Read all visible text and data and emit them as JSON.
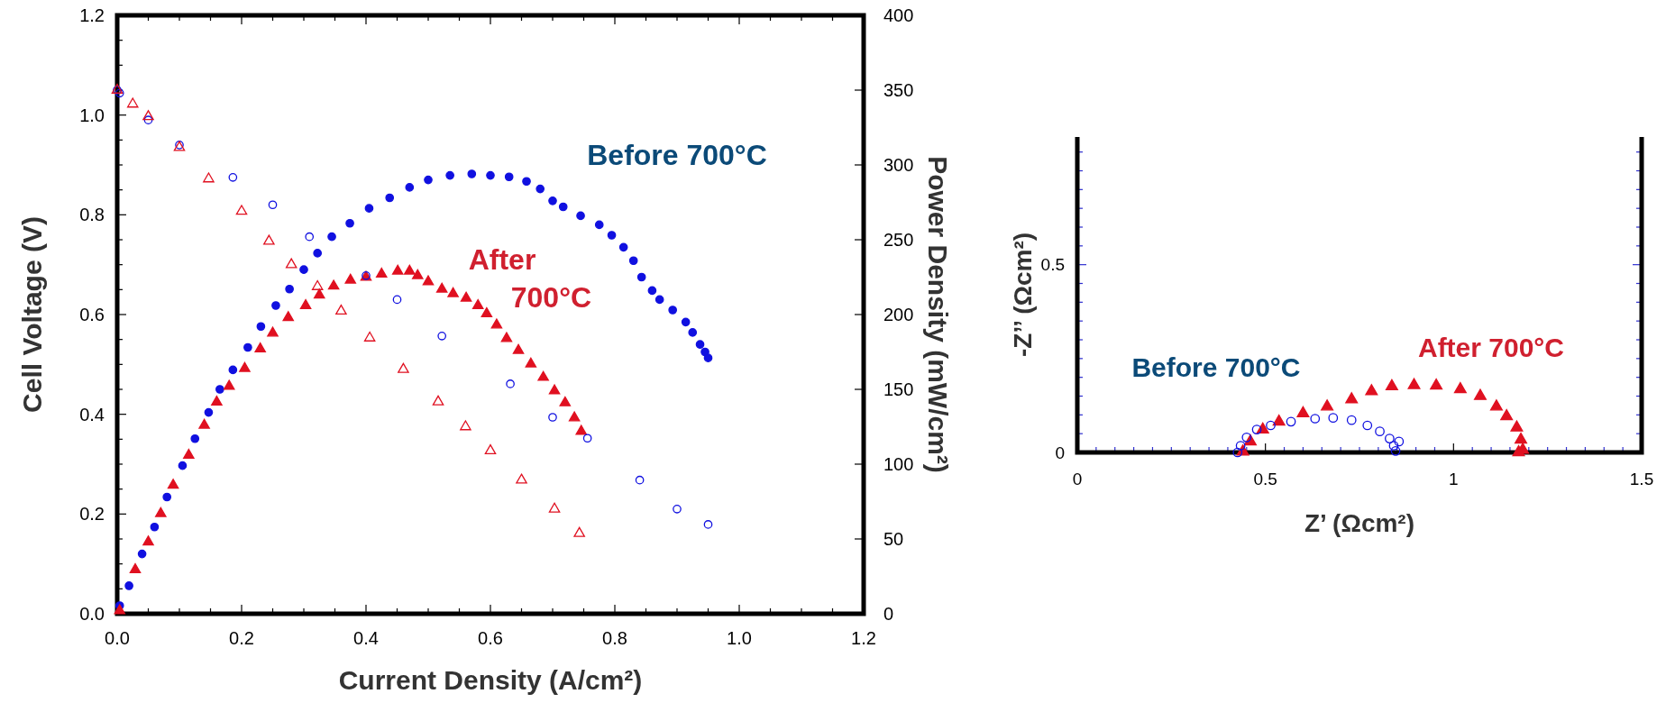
{
  "chart_data": [
    {
      "type": "scatter",
      "xlabel": "Current Density (A/cm²)",
      "ylabel": "Cell Voltage (V)",
      "y2label": "Power Density (mW/cm²)",
      "xlim": [
        0,
        1.2
      ],
      "ylim": [
        0,
        1.2
      ],
      "y2lim": [
        0,
        400
      ],
      "xticks": [
        {
          "value": 0,
          "label": "0.0"
        },
        {
          "value": 0.05,
          "label": null
        },
        {
          "value": 0.1,
          "label": null
        },
        {
          "value": 0.15,
          "label": null
        },
        {
          "value": 0.2,
          "label": "0.2"
        },
        {
          "value": 0.25,
          "label": null
        },
        {
          "value": 0.3,
          "label": null
        },
        {
          "value": 0.35,
          "label": null
        },
        {
          "value": 0.4,
          "label": "0.4"
        },
        {
          "value": 0.45,
          "label": null
        },
        {
          "value": 0.5,
          "label": null
        },
        {
          "value": 0.55,
          "label": null
        },
        {
          "value": 0.6,
          "label": "0.6"
        },
        {
          "value": 0.65,
          "label": null
        },
        {
          "value": 0.7,
          "label": null
        },
        {
          "value": 0.75,
          "label": null
        },
        {
          "value": 0.8,
          "label": "0.8"
        },
        {
          "value": 0.85,
          "label": null
        },
        {
          "value": 0.9,
          "label": null
        },
        {
          "value": 0.95,
          "label": null
        },
        {
          "value": 1,
          "label": "1.0"
        },
        {
          "value": 1.05,
          "label": null
        },
        {
          "value": 1.1,
          "label": null
        },
        {
          "value": 1.15,
          "label": null
        },
        {
          "value": 1.2,
          "label": "1.2"
        }
      ],
      "yticks": [
        {
          "value": 0,
          "label": "0.0"
        },
        {
          "value": 0.05,
          "label": null
        },
        {
          "value": 0.1,
          "label": null
        },
        {
          "value": 0.15,
          "label": null
        },
        {
          "value": 0.2,
          "label": "0.2"
        },
        {
          "value": 0.25,
          "label": null
        },
        {
          "value": 0.3,
          "label": null
        },
        {
          "value": 0.35,
          "label": null
        },
        {
          "value": 0.4,
          "label": "0.4"
        },
        {
          "value": 0.45,
          "label": null
        },
        {
          "value": 0.5,
          "label": null
        },
        {
          "value": 0.55,
          "label": null
        },
        {
          "value": 0.6,
          "label": "0.6"
        },
        {
          "value": 0.65,
          "label": null
        },
        {
          "value": 0.7,
          "label": null
        },
        {
          "value": 0.75,
          "label": null
        },
        {
          "value": 0.8,
          "label": "0.8"
        },
        {
          "value": 0.85,
          "label": null
        },
        {
          "value": 0.9,
          "label": null
        },
        {
          "value": 0.95,
          "label": null
        },
        {
          "value": 1,
          "label": "1.0"
        },
        {
          "value": 1.05,
          "label": null
        },
        {
          "value": 1.1,
          "label": null
        },
        {
          "value": 1.15,
          "label": null
        },
        {
          "value": 1.2,
          "label": "1.2"
        }
      ],
      "y2ticks": [
        0,
        50,
        100,
        150,
        200,
        250,
        300,
        350,
        400
      ],
      "series": [
        {
          "color": "#1010e0",
          "marker": "circle",
          "x": [
            0,
            0.004,
            0.05,
            0.1,
            0.186,
            0.25,
            0.309,
            0.4,
            0.45,
            0.522,
            0.632,
            0.7,
            0.756,
            0.84,
            0.9,
            0.95
          ],
          "values": [
            1.05,
            1.044,
            0.99,
            0.94,
            0.875,
            0.82,
            0.756,
            0.678,
            0.63,
            0.557,
            0.461,
            0.394,
            0.352,
            0.268,
            0.21,
            0.179
          ]
        },
        {
          "color": "#1010e0",
          "marker": "circle",
          "axis": "y2",
          "x": [
            0.004,
            0.019,
            0.04,
            0.06,
            0.08,
            0.105,
            0.125,
            0.147,
            0.165,
            0.186,
            0.21,
            0.231,
            0.255,
            0.277,
            0.3,
            0.322,
            0.345,
            0.374,
            0.405,
            0.438,
            0.47,
            0.5,
            0.535,
            0.57,
            0.6,
            0.63,
            0.658,
            0.68,
            0.7,
            0.717,
            0.745,
            0.775,
            0.795,
            0.814,
            0.83,
            0.843,
            0.86,
            0.872,
            0.893,
            0.914,
            0.925,
            0.937,
            0.945,
            0.95
          ],
          "values": [
            5.4,
            18.7,
            40,
            58,
            78,
            99,
            117,
            134.6,
            150,
            163,
            178,
            192,
            206,
            217,
            230,
            241,
            252,
            261,
            271,
            278,
            285,
            290,
            293,
            294,
            293,
            292,
            289,
            284,
            276,
            272,
            266,
            260,
            253,
            245,
            236,
            225,
            216,
            210,
            203,
            195,
            188,
            180,
            175,
            171
          ]
        },
        {
          "color": "#e01020",
          "marker": "triangle",
          "x": [
            0,
            0.025,
            0.05,
            0.1,
            0.147,
            0.2,
            0.244,
            0.28,
            0.322,
            0.36,
            0.406,
            0.46,
            0.516,
            0.56,
            0.6,
            0.65,
            0.703,
            0.743
          ],
          "values": [
            1.05,
            1.022,
            0.997,
            0.935,
            0.872,
            0.807,
            0.747,
            0.7,
            0.656,
            0.607,
            0.553,
            0.49,
            0.425,
            0.375,
            0.327,
            0.268,
            0.21,
            0.161
          ]
        },
        {
          "color": "#e01020",
          "marker": "triangle",
          "axis": "y2",
          "x": [
            0.004,
            0.029,
            0.05,
            0.07,
            0.09,
            0.115,
            0.14,
            0.16,
            0.18,
            0.205,
            0.23,
            0.25,
            0.275,
            0.303,
            0.325,
            0.348,
            0.375,
            0.4,
            0.425,
            0.451,
            0.47,
            0.483,
            0.5,
            0.522,
            0.54,
            0.561,
            0.58,
            0.594,
            0.61,
            0.626,
            0.645,
            0.665,
            0.685,
            0.703,
            0.72,
            0.735,
            0.746
          ],
          "values": [
            2,
            29.5,
            48,
            67,
            86,
            106,
            126,
            141.5,
            152,
            164,
            177,
            187.6,
            198,
            206,
            213,
            219,
            223,
            225,
            227,
            229,
            229,
            226,
            222,
            217,
            214,
            211,
            206,
            200.6,
            193,
            184,
            176,
            167,
            158,
            149,
            141,
            131,
            122
          ]
        }
      ],
      "annotations": [
        "Before 700°C",
        "After\n700°C"
      ]
    },
    {
      "type": "scatter",
      "xlabel": "Z’ (Ωcm²)",
      "ylabel": "-Z’’ (Ωcm²)",
      "xlim": [
        0,
        1.5
      ],
      "ylim": [
        0,
        0.84
      ],
      "xticks": [
        0,
        {
          "value": 0.05,
          "label": null
        },
        {
          "value": 0.1,
          "label": null
        },
        {
          "value": 0.15,
          "label": null
        },
        {
          "value": 0.2,
          "label": null
        },
        {
          "value": 0.25,
          "label": null
        },
        {
          "value": 0.3,
          "label": null
        },
        {
          "value": 0.35,
          "label": null
        },
        {
          "value": 0.4,
          "label": null
        },
        {
          "value": 0.45,
          "label": null
        },
        0.5,
        {
          "value": 0.55,
          "label": null
        },
        {
          "value": 0.6,
          "label": null
        },
        {
          "value": 0.65,
          "label": null
        },
        {
          "value": 0.7,
          "label": null
        },
        {
          "value": 0.75,
          "label": null
        },
        {
          "value": 0.8,
          "label": null
        },
        {
          "value": 0.85,
          "label": null
        },
        {
          "value": 0.9,
          "label": null
        },
        {
          "value": 0.95,
          "label": null
        },
        1,
        {
          "value": 1.05,
          "label": null
        },
        {
          "value": 1.1,
          "label": null
        },
        {
          "value": 1.15,
          "label": null
        },
        {
          "value": 1.2,
          "label": null
        },
        {
          "value": 1.25,
          "label": null
        },
        {
          "value": 1.3,
          "label": null
        },
        {
          "value": 1.35,
          "label": null
        },
        {
          "value": 1.4,
          "label": null
        },
        {
          "value": 1.45,
          "label": null
        },
        1.5
      ],
      "yticks": [
        0,
        {
          "value": 0.05,
          "label": null
        },
        {
          "value": 0.1,
          "label": null
        },
        {
          "value": 0.15,
          "label": null
        },
        {
          "value": 0.2,
          "label": null
        },
        {
          "value": 0.25,
          "label": null
        },
        {
          "value": 0.3,
          "label": null
        },
        {
          "value": 0.35,
          "label": null
        },
        {
          "value": 0.4,
          "label": null
        },
        {
          "value": 0.45,
          "label": null
        },
        0.5,
        {
          "value": 0.55,
          "label": null
        },
        {
          "value": 0.6,
          "label": null
        },
        {
          "value": 0.65,
          "label": null
        },
        {
          "value": 0.7,
          "label": null
        },
        {
          "value": 0.75,
          "label": null
        },
        {
          "value": 0.8,
          "label": null
        }
      ],
      "series": [
        {
          "color": "#1010e0",
          "marker": "circle",
          "x": [
            0.426,
            0.434,
            0.45,
            0.477,
            0.514,
            0.568,
            0.632,
            0.68,
            0.729,
            0.771,
            0.804,
            0.83,
            0.841,
            0.846,
            0.855
          ],
          "values": [
            0,
            0.018,
            0.04,
            0.061,
            0.072,
            0.082,
            0.09,
            0.092,
            0.086,
            0.072,
            0.056,
            0.037,
            0.018,
            0.004,
            0.029
          ]
        },
        {
          "color": "#e01020",
          "marker": "triangle",
          "x": [
            0.44,
            0.46,
            0.493,
            0.536,
            0.6,
            0.664,
            0.729,
            0.782,
            0.836,
            0.895,
            0.954,
            1.018,
            1.071,
            1.114,
            1.141,
            1.168,
            1.179,
            1.184,
            1.173
          ],
          "values": [
            0.002,
            0.029,
            0.061,
            0.082,
            0.104,
            0.122,
            0.141,
            0.163,
            0.176,
            0.179,
            0.178,
            0.168,
            0.15,
            0.122,
            0.096,
            0.066,
            0.034,
            0.007,
            0
          ]
        }
      ],
      "annotations": [
        "Before 700°C",
        "After 700°C"
      ]
    }
  ]
}
